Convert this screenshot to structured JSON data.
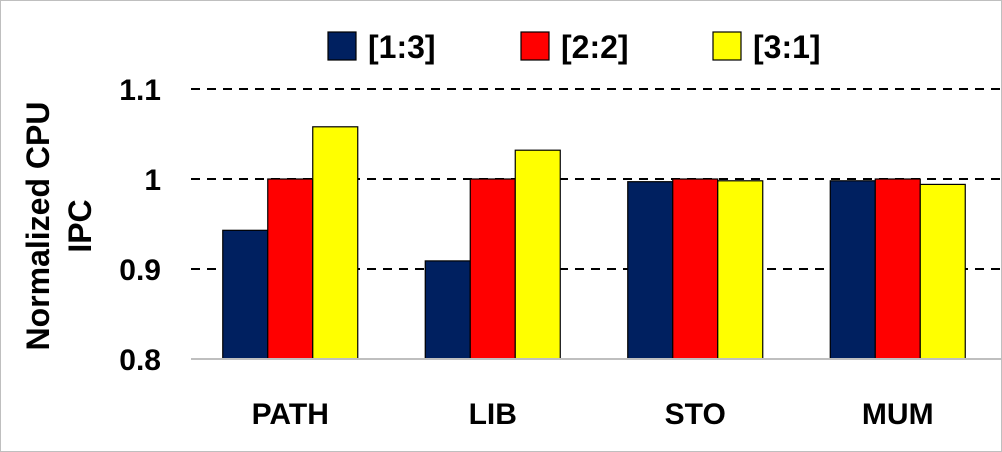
{
  "chart_data": {
    "type": "bar",
    "title": "",
    "xlabel": "",
    "ylabel": [
      "Normalized CPU",
      "IPC"
    ],
    "categories": [
      "PATH",
      "LIB",
      "STO",
      "MUM"
    ],
    "series": [
      {
        "name": "[1:3]",
        "color": "#002060",
        "values": [
          0.943,
          0.909,
          0.997,
          0.998
        ]
      },
      {
        "name": "[2:2]",
        "color": "#ff0000",
        "values": [
          1.0,
          1.0,
          1.0,
          1.0
        ]
      },
      {
        "name": "[3:1]",
        "color": "#ffff00",
        "values": [
          1.058,
          1.032,
          0.998,
          0.994
        ]
      }
    ],
    "ylim": [
      0.8,
      1.1
    ],
    "yticks": [
      "0.8",
      "0.9",
      "1",
      "1.1"
    ],
    "ytick_values": [
      0.8,
      0.9,
      1.0,
      1.1
    ],
    "grid": "dashed-horizontal",
    "legend_position": "top"
  }
}
